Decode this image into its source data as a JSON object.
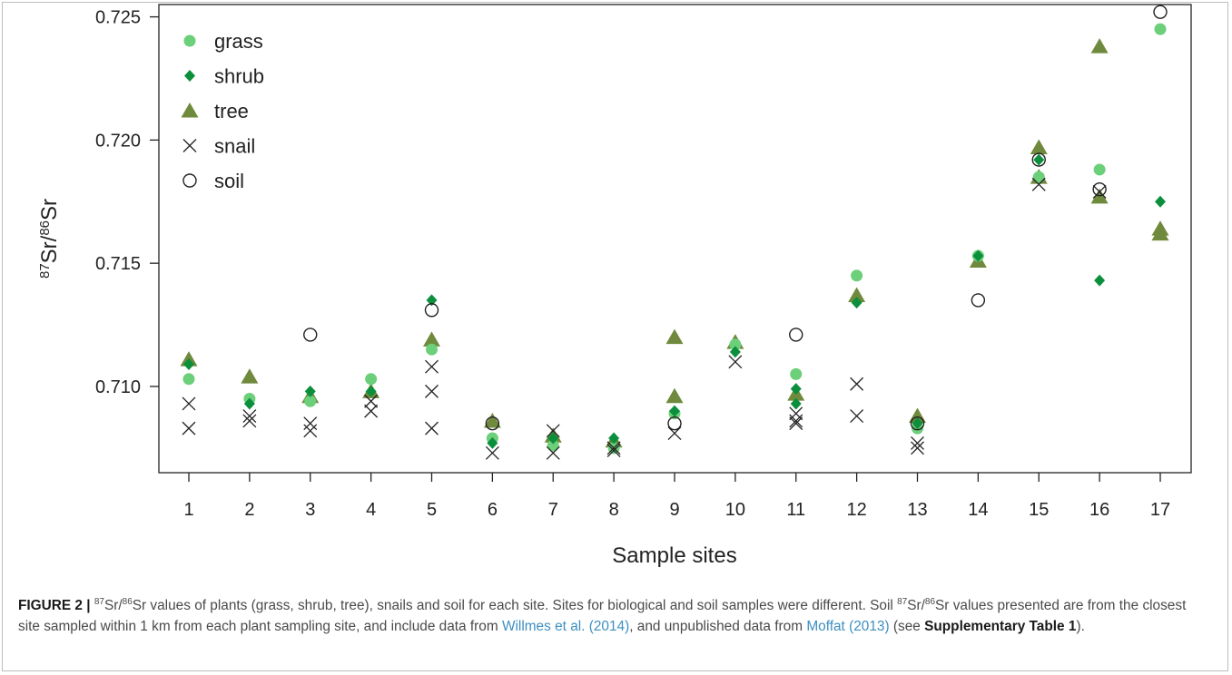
{
  "chart_data": {
    "type": "scatter",
    "xlabel": "Sample sites",
    "ylabel": {
      "sup1": "87",
      "part1": "Sr/",
      "sup2": "86",
      "part2": "Sr"
    },
    "categories": [
      "1",
      "2",
      "3",
      "4",
      "5",
      "6",
      "7",
      "8",
      "9",
      "10",
      "11",
      "12",
      "13",
      "14",
      "15",
      "16",
      "17"
    ],
    "ylim": [
      0.7065,
      0.7255
    ],
    "yticks": [
      "0.710",
      "0.715",
      "0.720",
      "0.725"
    ],
    "grid": false,
    "legend_position": "top-left",
    "series": [
      {
        "name": "grass",
        "marker": "circle-filled",
        "color": "#6ccf7a",
        "points": [
          [
            1,
            0.7103
          ],
          [
            2,
            0.7095
          ],
          [
            3,
            0.7094
          ],
          [
            4,
            0.7103
          ],
          [
            5,
            0.7115
          ],
          [
            6,
            0.7079
          ],
          [
            7,
            0.7076
          ],
          [
            8,
            0.7075
          ],
          [
            9,
            0.7089
          ],
          [
            10,
            0.7117
          ],
          [
            11,
            0.7105
          ],
          [
            12,
            0.7145
          ],
          [
            13,
            0.7083
          ],
          [
            14,
            0.7153
          ],
          [
            15,
            0.7185
          ],
          [
            16,
            0.7188
          ],
          [
            17,
            0.7245
          ]
        ]
      },
      {
        "name": "shrub",
        "marker": "diamond",
        "color": "#0c8f3c",
        "points": [
          [
            1,
            0.7109
          ],
          [
            2,
            0.7093
          ],
          [
            3,
            0.7098
          ],
          [
            4,
            0.7098
          ],
          [
            5,
            0.7135
          ],
          [
            6,
            0.7077
          ],
          [
            7,
            0.7079
          ],
          [
            8,
            0.7079
          ],
          [
            9,
            0.709
          ],
          [
            10,
            0.7114
          ],
          [
            11,
            0.7099
          ],
          [
            11,
            0.7093
          ],
          [
            12,
            0.7134
          ],
          [
            13,
            0.7085
          ],
          [
            14,
            0.7153
          ],
          [
            15,
            0.7192
          ],
          [
            16,
            0.7143
          ],
          [
            17,
            0.7175
          ]
        ]
      },
      {
        "name": "tree",
        "marker": "triangle",
        "color": "#6f8a3d",
        "points": [
          [
            1,
            0.7111
          ],
          [
            2,
            0.7104
          ],
          [
            3,
            0.7096
          ],
          [
            4,
            0.7098
          ],
          [
            5,
            0.7119
          ],
          [
            6,
            0.7086
          ],
          [
            7,
            0.708
          ],
          [
            8,
            0.7078
          ],
          [
            9,
            0.712
          ],
          [
            9,
            0.7096
          ],
          [
            10,
            0.7118
          ],
          [
            11,
            0.7097
          ],
          [
            12,
            0.7137
          ],
          [
            13,
            0.7088
          ],
          [
            14,
            0.7151
          ],
          [
            15,
            0.7197
          ],
          [
            15,
            0.7185
          ],
          [
            16,
            0.7238
          ],
          [
            16,
            0.7177
          ],
          [
            17,
            0.7164
          ],
          [
            17,
            0.7162
          ]
        ]
      },
      {
        "name": "snail",
        "marker": "cross",
        "color": "#222222",
        "points": [
          [
            1,
            0.7093
          ],
          [
            1,
            0.7083
          ],
          [
            2,
            0.7088
          ],
          [
            2,
            0.7086
          ],
          [
            3,
            0.7085
          ],
          [
            3,
            0.7082
          ],
          [
            4,
            0.7094
          ],
          [
            4,
            0.709
          ],
          [
            5,
            0.7108
          ],
          [
            5,
            0.7098
          ],
          [
            5,
            0.7083
          ],
          [
            6,
            0.7073
          ],
          [
            7,
            0.7082
          ],
          [
            7,
            0.7073
          ],
          [
            8,
            0.7075
          ],
          [
            8,
            0.7074
          ],
          [
            9,
            0.7081
          ],
          [
            10,
            0.711
          ],
          [
            11,
            0.7089
          ],
          [
            11,
            0.7086
          ],
          [
            11,
            0.7085
          ],
          [
            12,
            0.7101
          ],
          [
            12,
            0.7088
          ],
          [
            13,
            0.7077
          ],
          [
            13,
            0.7075
          ],
          [
            15,
            0.7182
          ],
          [
            16,
            0.7179
          ]
        ]
      },
      {
        "name": "soil",
        "marker": "circle-open",
        "color": "#222222",
        "points": [
          [
            3,
            0.7121
          ],
          [
            5,
            0.7131
          ],
          [
            6,
            0.7085
          ],
          [
            9,
            0.7085
          ],
          [
            11,
            0.7121
          ],
          [
            13,
            0.7085
          ],
          [
            14,
            0.7135
          ],
          [
            15,
            0.7192
          ],
          [
            16,
            0.718
          ],
          [
            17,
            0.7252
          ]
        ]
      }
    ]
  },
  "caption": {
    "figure_label": "FIGURE 2 |",
    "sup_87": "87",
    "sup_86": "86",
    "seg1": "Sr/",
    "seg2": "Sr values of plants (grass, shrub, tree), snails and soil for each site. Sites for biological and soil samples were different. Soil ",
    "seg3": "Sr/",
    "seg4": "Sr values presented are from the closest site sampled within 1 km from each plant sampling site, and include data from ",
    "cite1": "Willmes et al. (2014)",
    "seg5": ", and unpublished data from ",
    "cite2": "Moffat (2013)",
    "seg6": " (see ",
    "bold_ref": "Supplementary Table 1",
    "seg7": ")."
  }
}
